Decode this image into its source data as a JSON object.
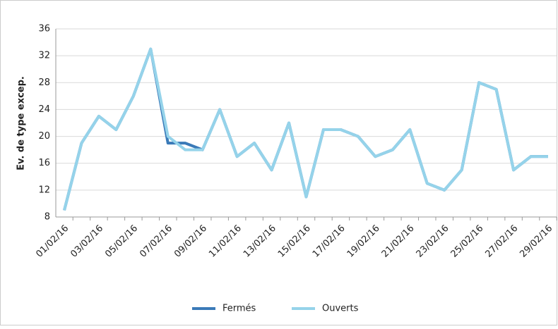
{
  "chart_data": {
    "type": "line",
    "y_label": "Ev. de type excep.",
    "categories": [
      "01/02/16",
      null,
      "03/02/16",
      null,
      "05/02/16",
      null,
      "07/02/16",
      null,
      "09/02/16",
      null,
      "11/02/16",
      null,
      "13/02/16",
      null,
      "15/02/16",
      null,
      "17/02/16",
      null,
      "19/02/16",
      null,
      "21/02/16",
      null,
      "23/02/16",
      null,
      "25/02/16",
      null,
      "27/02/16",
      null,
      "29/02/16"
    ],
    "series": [
      {
        "name": "Fermés",
        "color": "#3a7ab8",
        "values": [
          9,
          19,
          23,
          21,
          26,
          33,
          19,
          19,
          18,
          24,
          17,
          19,
          15,
          22,
          11,
          21,
          21,
          20,
          17,
          18,
          21,
          13,
          12,
          15,
          28,
          27,
          15,
          17,
          17
        ]
      },
      {
        "name": "Ouverts",
        "color": "#95d3ea",
        "values": [
          9,
          19,
          23,
          21,
          26,
          33,
          20,
          18,
          18,
          24,
          17,
          19,
          15,
          22,
          11,
          21,
          21,
          20,
          17,
          18,
          21,
          13,
          12,
          15,
          28,
          27,
          15,
          17,
          17
        ]
      }
    ],
    "ylim": [
      8,
      36
    ],
    "yticks": [
      8,
      12,
      16,
      20,
      24,
      28,
      32,
      36
    ],
    "grid": true,
    "legend": "bottom"
  }
}
